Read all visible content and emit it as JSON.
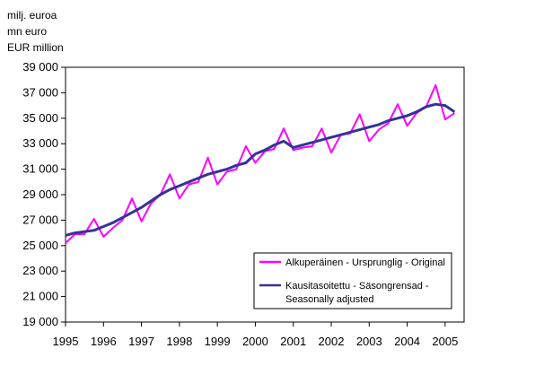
{
  "units": [
    "milj. euroa",
    "mn euro",
    "EUR million"
  ],
  "chart_data": {
    "type": "line",
    "title": "",
    "xlabel": "",
    "ylabel": "",
    "ylim": [
      19000,
      39000
    ],
    "y_ticks": [
      "19 000",
      "21 000",
      "23 000",
      "25 000",
      "27 000",
      "29 000",
      "31 000",
      "33 000",
      "35 000",
      "37 000",
      "39 000"
    ],
    "x_ticks": [
      "1995",
      "1996",
      "1997",
      "1998",
      "1999",
      "2000",
      "2001",
      "2002",
      "2003",
      "2004",
      "2005"
    ],
    "x_range": [
      1995,
      2005.5
    ],
    "grid": false,
    "legend_position": "lower-right",
    "series": [
      {
        "name": "Alkuperäinen - Ursprunglig - Original",
        "color": "#ff00ff",
        "x": [
          1995.0,
          1995.25,
          1995.5,
          1995.75,
          1996.0,
          1996.25,
          1996.5,
          1996.75,
          1997.0,
          1997.25,
          1997.5,
          1997.75,
          1998.0,
          1998.25,
          1998.5,
          1998.75,
          1999.0,
          1999.25,
          1999.5,
          1999.75,
          2000.0,
          2000.25,
          2000.5,
          2000.75,
          2001.0,
          2001.25,
          2001.5,
          2001.75,
          2002.0,
          2002.25,
          2002.5,
          2002.75,
          2003.0,
          2003.25,
          2003.5,
          2003.75,
          2004.0,
          2004.25,
          2004.5,
          2004.75,
          2005.0,
          2005.25
        ],
        "values": [
          25200,
          25900,
          25900,
          27100,
          25700,
          26400,
          27000,
          28700,
          26900,
          28300,
          29000,
          30600,
          28700,
          29800,
          30000,
          31900,
          29800,
          30800,
          31000,
          32800,
          31500,
          32400,
          32600,
          34200,
          32500,
          32700,
          32800,
          34200,
          32300,
          33700,
          33800,
          35300,
          33200,
          34100,
          34600,
          36100,
          34400,
          35400,
          35900,
          37600,
          34900,
          35400
        ]
      },
      {
        "name": "Kausitasoitettu - Säsongrensad - Seasonally adjusted",
        "color": "#333399",
        "x": [
          1995.0,
          1995.25,
          1995.5,
          1995.75,
          1996.0,
          1996.25,
          1996.5,
          1996.75,
          1997.0,
          1997.25,
          1997.5,
          1997.75,
          1998.0,
          1998.25,
          1998.5,
          1998.75,
          1999.0,
          1999.25,
          1999.5,
          1999.75,
          2000.0,
          2000.25,
          2000.5,
          2000.75,
          2001.0,
          2001.25,
          2001.5,
          2001.75,
          2002.0,
          2002.25,
          2002.5,
          2002.75,
          2003.0,
          2003.25,
          2003.5,
          2003.75,
          2004.0,
          2004.25,
          2004.5,
          2004.75,
          2005.0,
          2005.25
        ],
        "values": [
          25800,
          26000,
          26100,
          26200,
          26500,
          26800,
          27200,
          27600,
          28000,
          28500,
          29000,
          29400,
          29700,
          30000,
          30300,
          30600,
          30800,
          31000,
          31300,
          31500,
          32200,
          32500,
          32900,
          33200,
          32700,
          32900,
          33100,
          33300,
          33500,
          33700,
          33900,
          34100,
          34300,
          34500,
          34800,
          35000,
          35200,
          35500,
          35900,
          36100,
          36000,
          35500
        ]
      }
    ]
  }
}
